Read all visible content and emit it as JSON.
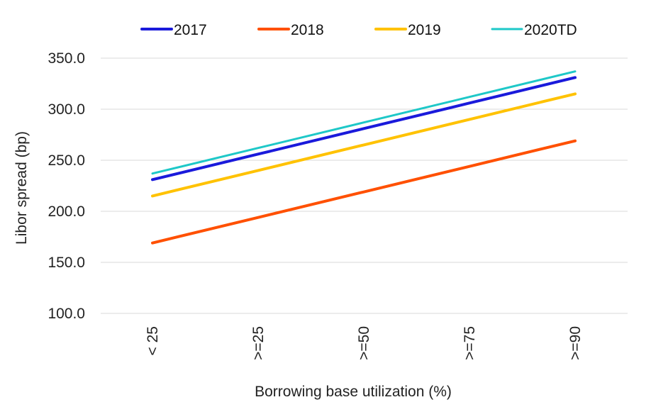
{
  "chart_data": {
    "type": "line",
    "title": "",
    "xlabel": "Borrowing base utilization (%)",
    "ylabel": "Libor spread (bp)",
    "categories": [
      "< 25",
      ">=25",
      ">=50",
      ">=75",
      ">=90"
    ],
    "ylim": [
      100,
      350
    ],
    "yticks": [
      "100.0",
      "150.0",
      "200.0",
      "250.0",
      "300.0",
      "350.0"
    ],
    "ytick_values": [
      100,
      150,
      200,
      250,
      300,
      350
    ],
    "grid": true,
    "legend_position": "top",
    "series": [
      {
        "name": "2017",
        "color": "#1a1adb",
        "values": [
          231,
          256,
          281,
          306,
          331
        ]
      },
      {
        "name": "2018",
        "color": "#ff5000",
        "values": [
          169,
          194,
          219,
          244,
          269
        ]
      },
      {
        "name": "2019",
        "color": "#ffc200",
        "values": [
          215,
          240,
          265,
          290,
          315
        ]
      },
      {
        "name": "2020TD",
        "color": "#1ec8c8",
        "values": [
          237,
          262,
          287,
          312,
          337
        ]
      }
    ]
  }
}
